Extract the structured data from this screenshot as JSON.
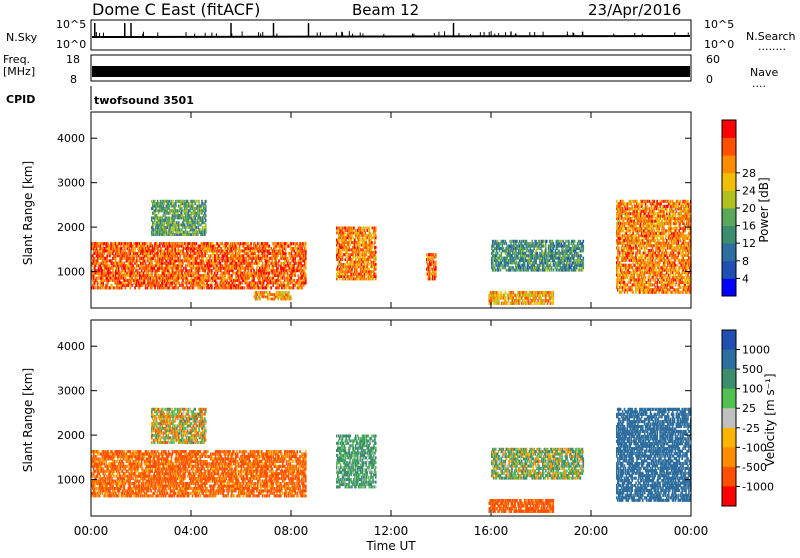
{
  "header": {
    "station": "Dome C East (fitACF)",
    "beam": "Beam 12",
    "date": "23/Apr/2016"
  },
  "strips": {
    "nsky_label": "N.Sky",
    "nsky_ticks": [
      "10^5",
      "10^0"
    ],
    "nsearch_label": "N.Search",
    "nsearch_ticks": [
      "10^5",
      "10^0"
    ],
    "freq_label_line1": "Freq.",
    "freq_label_line2": "[MHz]",
    "freq_ticks": [
      "18",
      "8"
    ],
    "nave_label": "Nave",
    "nave_ticks": [
      "60",
      "0"
    ],
    "cpid_label": "CPID",
    "cpid_value": "twofsound 3501"
  },
  "colors": {
    "power_scale": [
      "#0000ff",
      "#1f4fb0",
      "#2e6e9e",
      "#3c8c6e",
      "#5aa85a",
      "#b0c020",
      "#f0c000",
      "#ff8c00",
      "#ff5000",
      "#ff0000"
    ],
    "velocity_scale": [
      "#ff0000",
      "#ff5000",
      "#ff8c00",
      "#ffb400",
      "#c0c0c0",
      "#50c050",
      "#3c8c6e",
      "#2e6e9e",
      "#1f4fb0"
    ]
  },
  "chart_data": [
    {
      "type": "heatmap",
      "name": "power",
      "ylabel": "Slant Range [km]",
      "ylim": [
        180,
        4590
      ],
      "yticks": [
        "1000",
        "2000",
        "3000",
        "4000"
      ],
      "xlim_hours": [
        0,
        24
      ],
      "colorbar_label": "Power [dB]",
      "colorbar_ticks": [
        "4",
        "8",
        "12",
        "16",
        "20",
        "24",
        "28"
      ],
      "colorbar_range": [
        0,
        30
      ],
      "echo_regions": [
        {
          "t0": 0.0,
          "t1": 8.6,
          "r0": 600,
          "r1": 1650,
          "intensity": 26
        },
        {
          "t0": 2.4,
          "t1": 4.6,
          "r0": 1800,
          "r1": 2600,
          "intensity": 12
        },
        {
          "t0": 6.5,
          "t1": 8.0,
          "r0": 350,
          "r1": 550,
          "intensity": 22
        },
        {
          "t0": 9.8,
          "t1": 11.4,
          "r0": 800,
          "r1": 2000,
          "intensity": 24
        },
        {
          "t0": 13.4,
          "t1": 13.8,
          "r0": 800,
          "r1": 1400,
          "intensity": 26
        },
        {
          "t0": 15.9,
          "t1": 18.5,
          "r0": 250,
          "r1": 550,
          "intensity": 22
        },
        {
          "t0": 16.0,
          "t1": 19.7,
          "r0": 1000,
          "r1": 1700,
          "intensity": 10
        },
        {
          "t0": 21.0,
          "t1": 24.0,
          "r0": 500,
          "r1": 2600,
          "intensity": 24
        }
      ]
    },
    {
      "type": "heatmap",
      "name": "velocity",
      "ylabel": "Slant Range [km]",
      "ylim": [
        180,
        4590
      ],
      "yticks": [
        "1000",
        "2000",
        "3000",
        "4000"
      ],
      "xlim_hours": [
        0,
        24
      ],
      "xticks": [
        "00:00",
        "04:00",
        "08:00",
        "12:00",
        "16:00",
        "20:00",
        "00:00"
      ],
      "xlabel": "Time UT",
      "colorbar_label": "Velocity [m s⁻¹]",
      "colorbar_ticks": [
        "1000",
        "500",
        "100",
        "25",
        "-25",
        "-100",
        "-500",
        "-1000"
      ],
      "echo_regions": [
        {
          "t0": 0.0,
          "t1": 8.6,
          "r0": 600,
          "r1": 1650,
          "velocity": -150
        },
        {
          "t0": 2.4,
          "t1": 4.6,
          "r0": 1800,
          "r1": 2600,
          "velocity": 0
        },
        {
          "t0": 9.8,
          "t1": 11.4,
          "r0": 800,
          "r1": 2000,
          "velocity": 150
        },
        {
          "t0": 15.9,
          "t1": 18.5,
          "r0": 250,
          "r1": 550,
          "velocity": -200
        },
        {
          "t0": 16.0,
          "t1": 19.7,
          "r0": 1000,
          "r1": 1700,
          "velocity": 60
        },
        {
          "t0": 21.0,
          "t1": 24.0,
          "r0": 500,
          "r1": 2600,
          "velocity": 500
        }
      ]
    }
  ]
}
